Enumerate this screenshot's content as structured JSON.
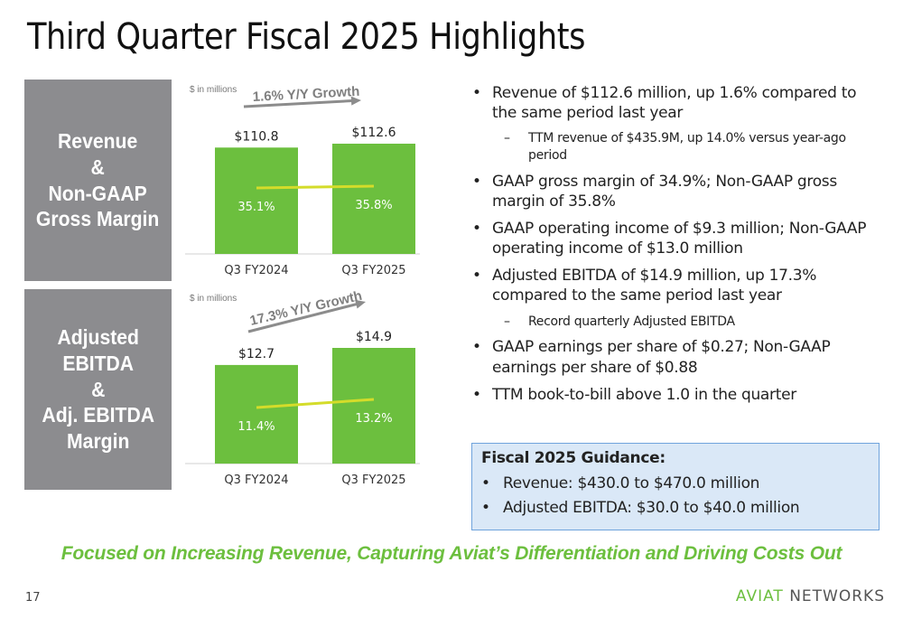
{
  "title": "Third Quarter Fiscal 2025 Highlights",
  "labels": {
    "revenue": "Revenue\n&\nNon-GAAP\nGross Margin",
    "ebitda": "Adjusted\nEBITDA\n&\nAdj. EBITDA\nMargin"
  },
  "chart_data": [
    {
      "type": "bar",
      "note": "$ in millions",
      "growth_label": "1.6% Y/Y Growth",
      "categories": [
        "Q3 FY2024",
        "Q3 FY2025"
      ],
      "values": [
        110.8,
        112.6
      ],
      "value_labels": [
        "$110.8",
        "$112.6"
      ],
      "line_values": [
        35.1,
        35.8
      ],
      "line_labels": [
        "35.1%",
        "35.8%"
      ],
      "colors": {
        "bar": "#6cbf3e",
        "line": "#d4dc2a",
        "arrow": "#8c8c8c"
      }
    },
    {
      "type": "bar",
      "note": "$ in millions",
      "growth_label": "17.3% Y/Y Growth",
      "categories": [
        "Q3 FY2024",
        "Q3 FY2025"
      ],
      "values": [
        12.7,
        14.9
      ],
      "value_labels": [
        "$12.7",
        "$14.9"
      ],
      "line_values": [
        11.4,
        13.2
      ],
      "line_labels": [
        "11.4%",
        "13.2%"
      ],
      "colors": {
        "bar": "#6cbf3e",
        "line": "#d4dc2a",
        "arrow": "#8c8c8c"
      }
    }
  ],
  "bullets": [
    {
      "level": 1,
      "text": "Revenue of $112.6 million, up 1.6% compared to the same period last year"
    },
    {
      "level": 2,
      "text": "TTM revenue of $435.9M, up 14.0% versus year-ago period"
    },
    {
      "level": 1,
      "text": "GAAP gross margin of 34.9%; Non-GAAP gross margin of 35.8%"
    },
    {
      "level": 1,
      "text": "GAAP operating income of $9.3 million; Non-GAAP operating income of $13.0 million"
    },
    {
      "level": 1,
      "text": "Adjusted EBITDA of $14.9 million, up 17.3% compared to the same period last year"
    },
    {
      "level": 2,
      "text": "Record quarterly Adjusted EBITDA"
    },
    {
      "level": 1,
      "text": "GAAP earnings per share of $0.27; Non-GAAP earnings per share of $0.88"
    },
    {
      "level": 1,
      "text": "TTM book-to-bill above 1.0 in the quarter"
    }
  ],
  "guidance": {
    "title": "Fiscal 2025 Guidance:",
    "items": [
      "Revenue: $430.0 to $470.0 million",
      "Adjusted EBITDA: $30.0 to $40.0 million"
    ]
  },
  "tagline": "Focused on Increasing Revenue, Capturing Aviat’s Differentiation and Driving Costs Out",
  "page_number": "17",
  "logo": {
    "part1": "AVIAT",
    "part2": "NETWORKS"
  }
}
